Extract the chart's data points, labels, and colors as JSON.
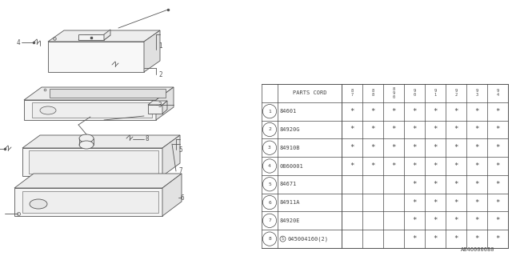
{
  "bg_color": "#ffffff",
  "diagram_color": "#555555",
  "table": {
    "header_label": "PARTS CORD",
    "columns": [
      "8\n7",
      "8\n8",
      "8\n9\n0",
      "9\n0",
      "9\n1",
      "9\n2",
      "9\n3",
      "9\n4"
    ],
    "rows": [
      {
        "num": 1,
        "part": "84601",
        "marks": [
          1,
          1,
          1,
          1,
          1,
          1,
          1,
          1
        ]
      },
      {
        "num": 2,
        "part": "84920G",
        "marks": [
          1,
          1,
          1,
          1,
          1,
          1,
          1,
          1
        ]
      },
      {
        "num": 3,
        "part": "84910B",
        "marks": [
          1,
          1,
          1,
          1,
          1,
          1,
          1,
          1
        ]
      },
      {
        "num": 4,
        "part": "0860001",
        "marks": [
          1,
          1,
          1,
          1,
          1,
          1,
          1,
          1
        ]
      },
      {
        "num": 5,
        "part": "84671",
        "marks": [
          0,
          0,
          0,
          1,
          1,
          1,
          1,
          1
        ]
      },
      {
        "num": 6,
        "part": "84911A",
        "marks": [
          0,
          0,
          0,
          1,
          1,
          1,
          1,
          1
        ]
      },
      {
        "num": 7,
        "part": "84920E",
        "marks": [
          0,
          0,
          0,
          1,
          1,
          1,
          1,
          1
        ]
      },
      {
        "num": 8,
        "part": "S045004160(2)",
        "marks": [
          0,
          0,
          0,
          1,
          1,
          1,
          1,
          1
        ]
      }
    ]
  },
  "footer": "A846000080"
}
